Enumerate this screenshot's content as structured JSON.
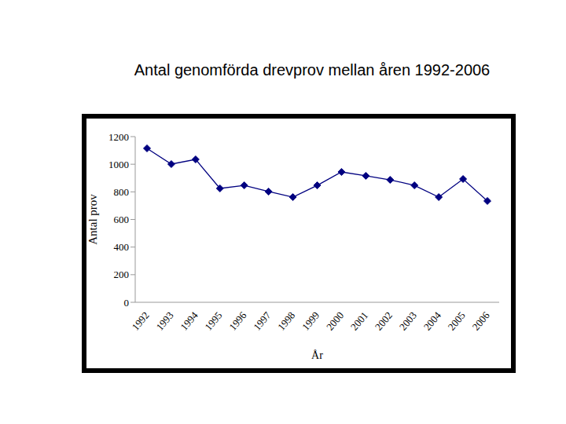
{
  "chart_data": {
    "type": "line",
    "title": "Antal genomförda drevprov mellan åren 1992-2006",
    "xlabel": "År",
    "ylabel": "Antal prov",
    "categories": [
      "1992",
      "1993",
      "1994",
      "1995",
      "1996",
      "1997",
      "1998",
      "1999",
      "2000",
      "2001",
      "2002",
      "2003",
      "2004",
      "2005",
      "2006"
    ],
    "values": [
      1115,
      1001,
      1035,
      825,
      847,
      802,
      762,
      847,
      944,
      916,
      887,
      847,
      762,
      893,
      734
    ],
    "color": "#000080",
    "marker": "diamond",
    "ylim": [
      0,
      1200
    ],
    "yticks": [
      0,
      200,
      400,
      600,
      800,
      1000,
      1200
    ],
    "grid": false
  }
}
